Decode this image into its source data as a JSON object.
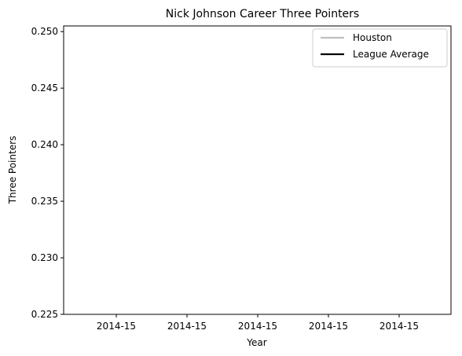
{
  "chart_data": {
    "type": "line",
    "title": "Nick Johnson  Career Three Pointers",
    "xlabel": "Year",
    "ylabel": "Three Pointers",
    "x_tick_labels": [
      "2014-15",
      "2014-15",
      "2014-15",
      "2014-15",
      "2014-15"
    ],
    "y_ticks": [
      0.225,
      0.23,
      0.235,
      0.24,
      0.245,
      0.25
    ],
    "y_tick_labels": [
      "0.225",
      "0.230",
      "0.235",
      "0.240",
      "0.245",
      "0.250"
    ],
    "ylim": [
      0.225,
      0.2505
    ],
    "grid": false,
    "legend_position": "top-right",
    "series": [
      {
        "name": "Houston",
        "color": "#bfbfbf",
        "values": []
      },
      {
        "name": "League Average",
        "color": "#000000",
        "values": []
      }
    ]
  }
}
